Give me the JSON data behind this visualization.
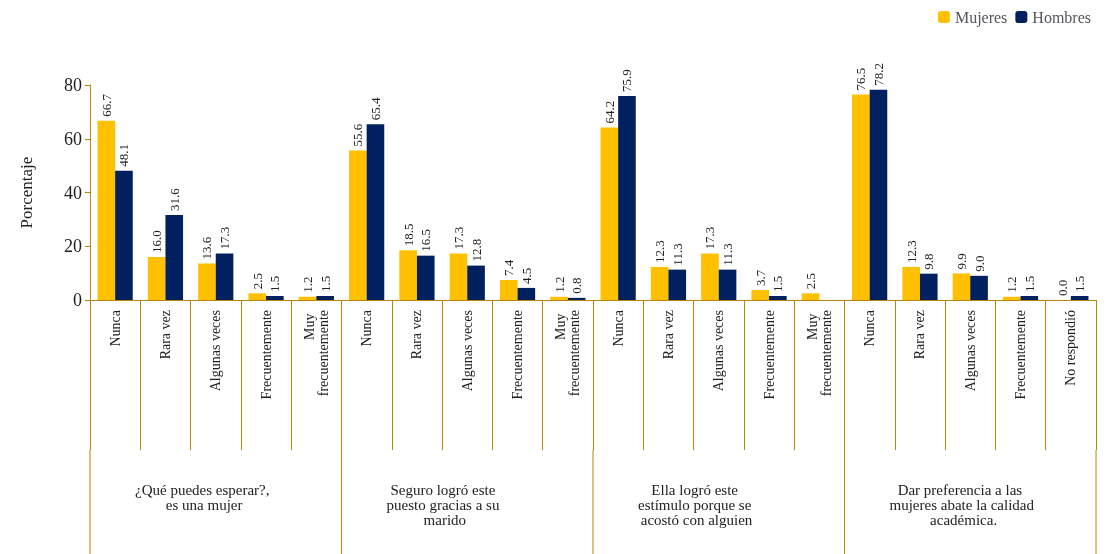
{
  "chart_data": {
    "type": "bar",
    "ylabel": "Porcentaje",
    "categories": [
      "Nunca",
      "Rara vez",
      "Algunas veces",
      "Frecuentemente",
      "Muy frecuentemente",
      "Nunca",
      "Rara vez",
      "Algunas veces",
      "Frecuentemente",
      "Muy frecuentemente",
      "Nunca",
      "Rara vez",
      "Algunas veces",
      "Frecuentemente",
      "Muy frecuentemente",
      "Nunca",
      "Rara vez",
      "Algunas veces",
      "Frecuentemente",
      "No respondió"
    ],
    "series": [
      {
        "name": "Mujeres",
        "color": "#ffc000",
        "values": [
          66.7,
          16.0,
          13.6,
          2.5,
          1.2,
          55.6,
          18.5,
          17.3,
          7.4,
          1.2,
          64.2,
          12.3,
          17.3,
          3.7,
          2.5,
          76.5,
          12.3,
          9.9,
          1.2,
          0.0
        ],
        "value_labels": [
          "66.7",
          "16.0",
          "13.6",
          "2.5",
          "1.2",
          "55.6",
          "18.5",
          "17.3",
          "7.4",
          "1.2",
          "64.2",
          "12.3",
          "17.3",
          "3.7",
          "2.5",
          "76.5",
          "12.3",
          "9.9",
          "1.2",
          "0.0"
        ]
      },
      {
        "name": "Hombres",
        "color": "#002060",
        "values": [
          48.1,
          31.6,
          17.3,
          1.5,
          1.5,
          65.4,
          16.5,
          12.8,
          4.5,
          0.8,
          75.9,
          11.3,
          11.3,
          1.5,
          null,
          78.2,
          9.8,
          9.0,
          1.5,
          1.5
        ],
        "value_labels": [
          "48.1",
          "31.6",
          "17.3",
          "1.5",
          "1.5",
          "65.4",
          "16.5",
          "12.8",
          "4.5",
          "0.8",
          "75.9",
          "11.3",
          "11.3",
          "1.5",
          null,
          "78.2",
          "9.8",
          "9.0",
          "1.5",
          "1.5"
        ]
      }
    ],
    "ylim": [
      0,
      80
    ],
    "yticks": [
      0,
      20,
      40,
      60,
      80
    ],
    "grid": false,
    "legend": "top right",
    "annotations": [
      "¿Qué puedes esperar?, es una mujer",
      "Seguro logró este puesto gracias a su marido",
      "Ella logró este estímulo porque se acostó con alguien",
      "Dar preferencia a las mujeres abate la calidad académica."
    ]
  }
}
